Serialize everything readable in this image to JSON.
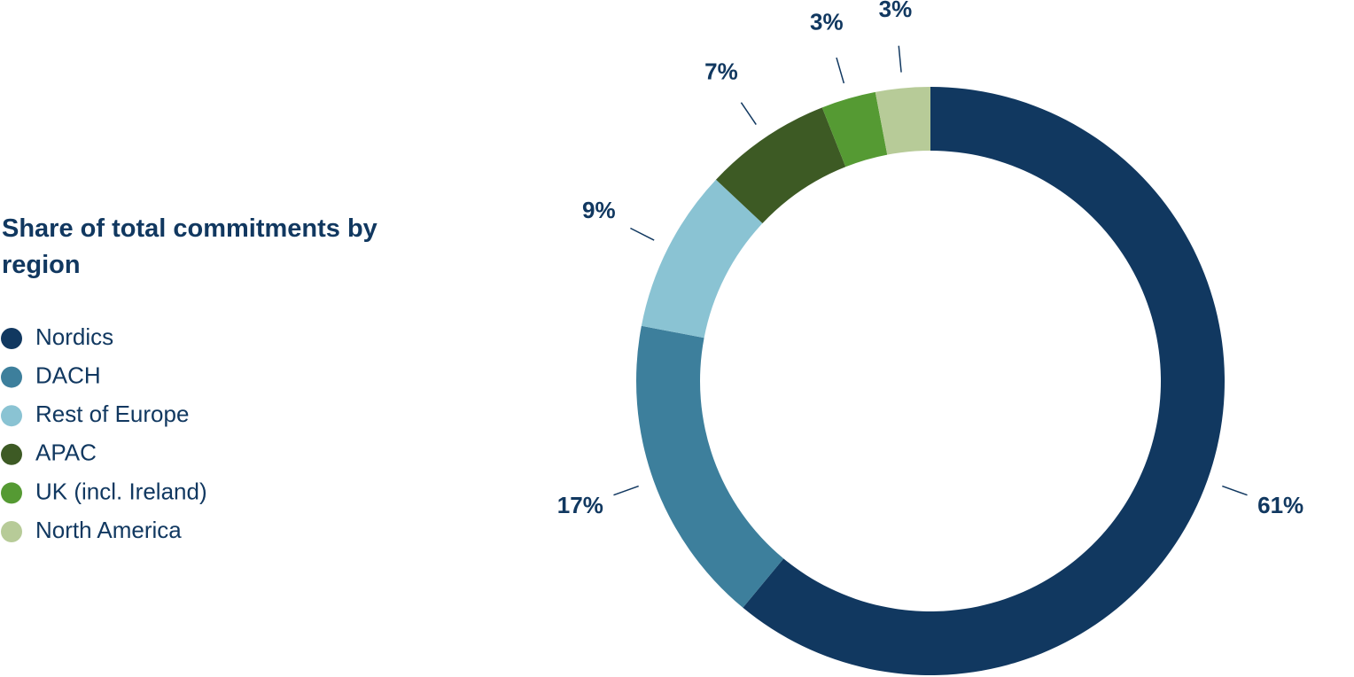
{
  "chart_data": {
    "type": "donut",
    "title": "Share of total commitments by region",
    "categories": [
      "Nordics",
      "DACH",
      "Rest of Europe",
      "APAC",
      "UK (incl. Ireland)",
      "North America"
    ],
    "values": [
      61,
      17,
      9,
      7,
      3,
      3
    ],
    "value_labels": [
      "61%",
      "17%",
      "9%",
      "7%",
      "3%",
      "3%"
    ],
    "colors": [
      "#113860",
      "#3d7f9c",
      "#8ac3d3",
      "#3d5a24",
      "#559a33",
      "#b7cb98"
    ]
  }
}
